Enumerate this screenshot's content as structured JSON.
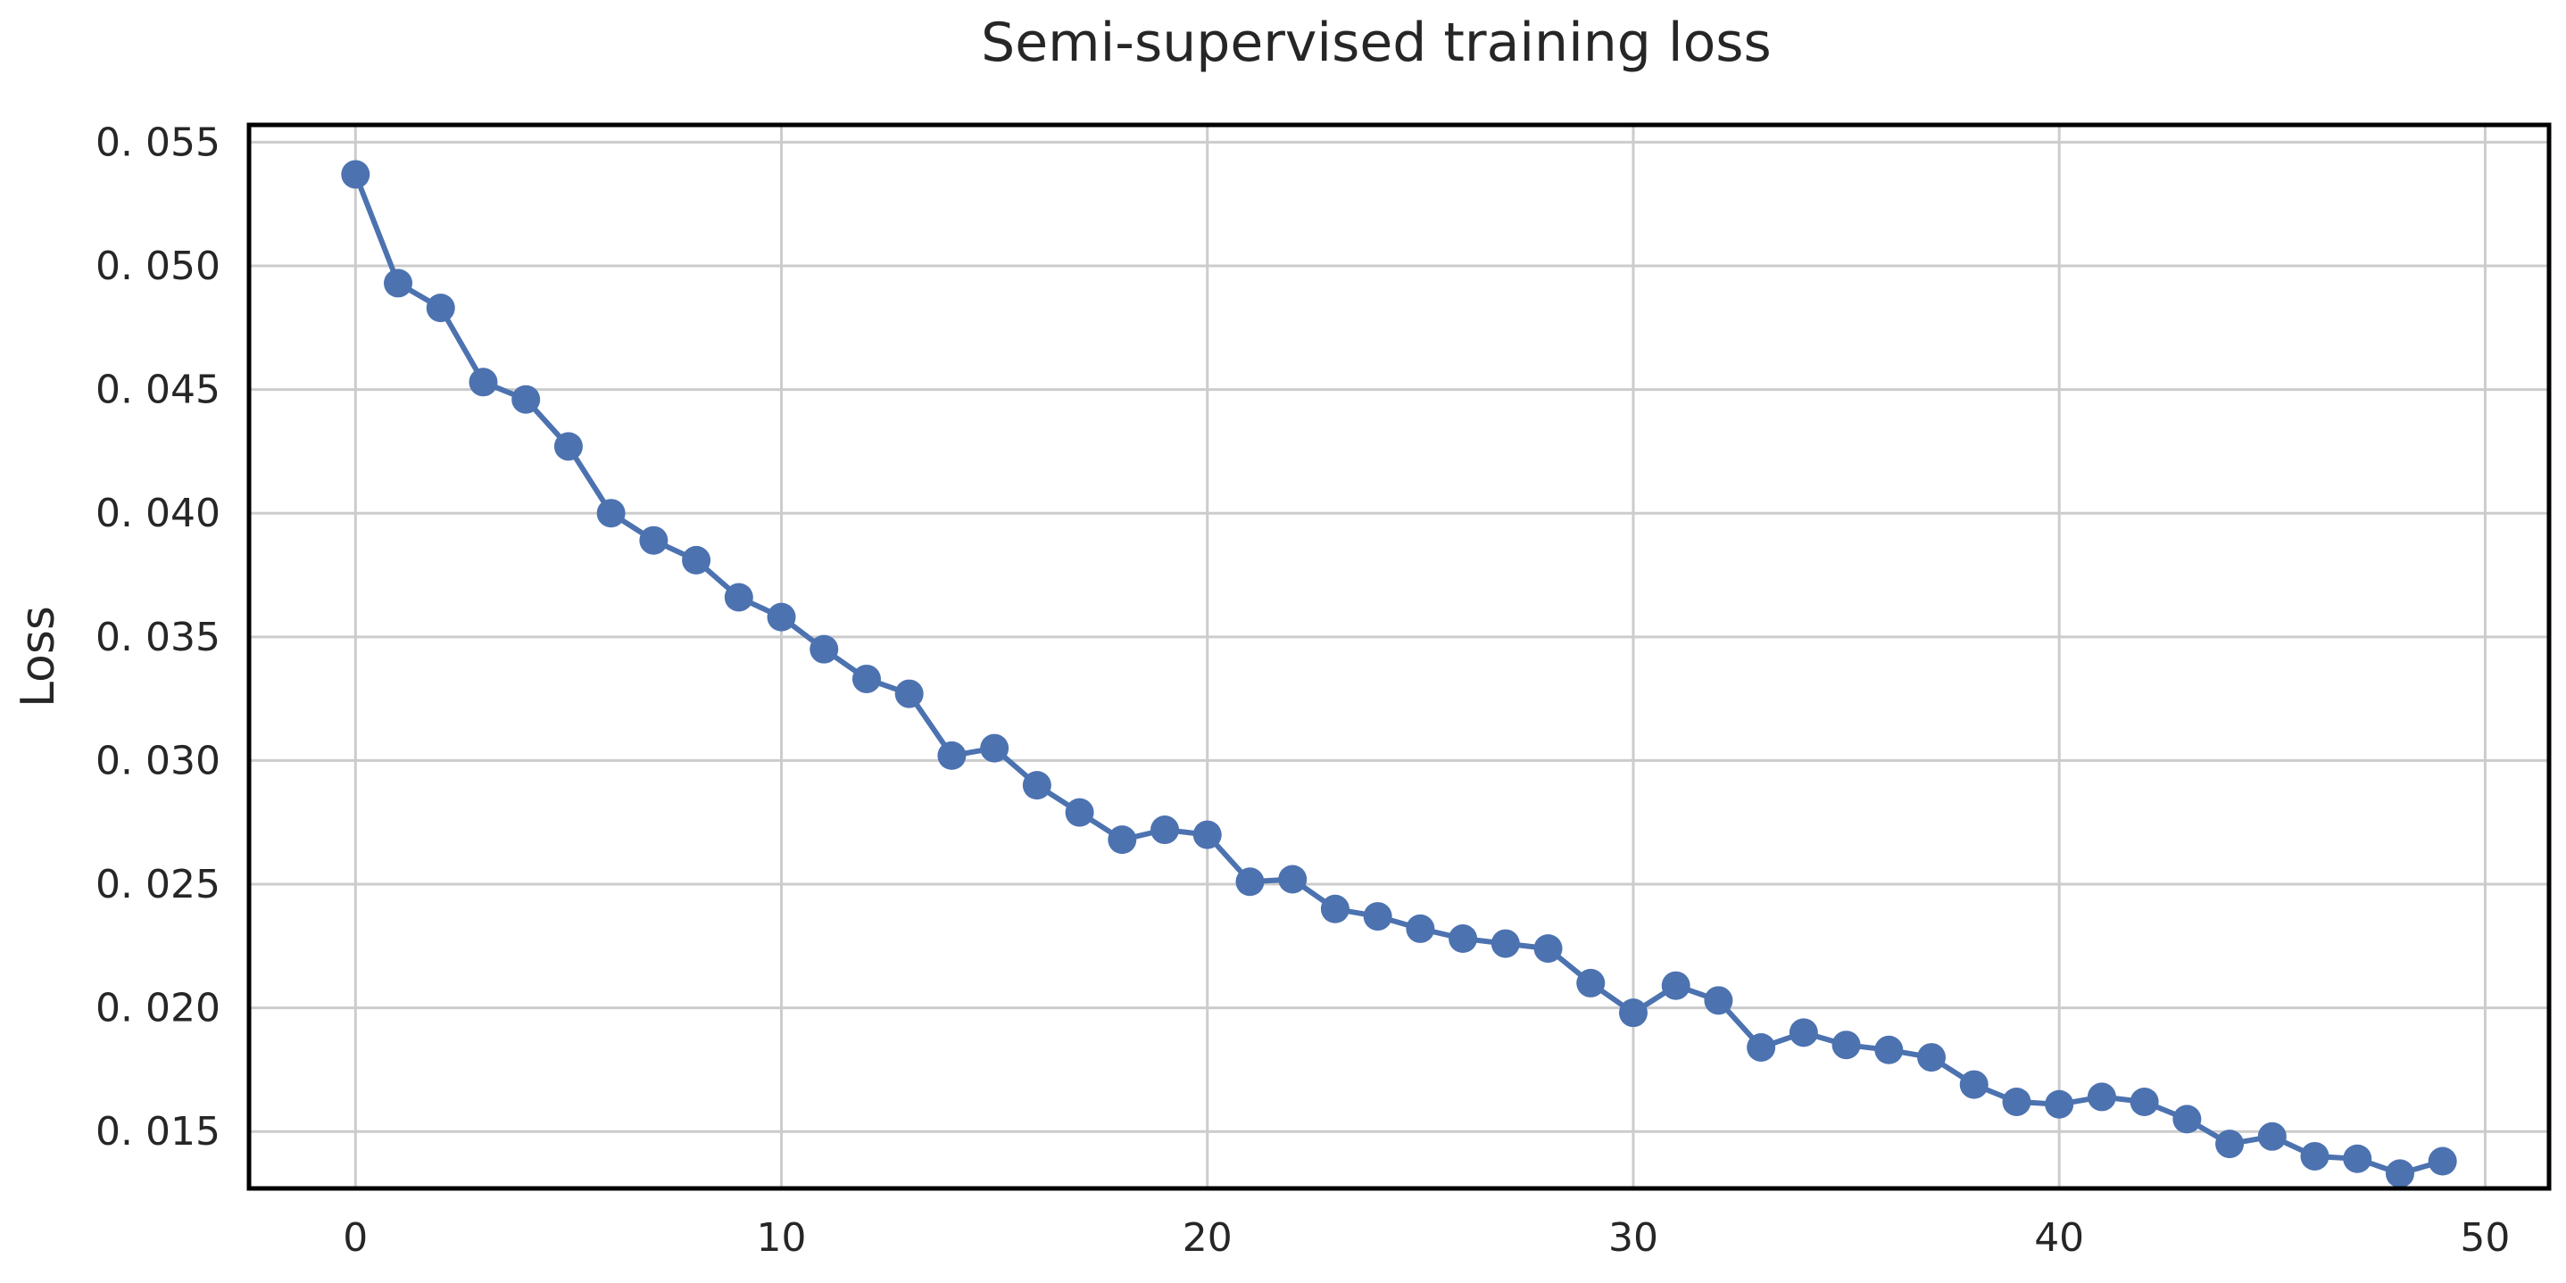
{
  "chart_data": {
    "type": "line",
    "title": "Semi-supervised training loss",
    "xlabel": "",
    "ylabel": "Loss",
    "xlim": [
      -2.5,
      51.5
    ],
    "ylim": [
      0.0127,
      0.0557
    ],
    "xticks": [
      0,
      10,
      20,
      30,
      40,
      50
    ],
    "xtick_labels": [
      "0",
      "10",
      "20",
      "30",
      "40",
      "50"
    ],
    "yticks": [
      0.015,
      0.02,
      0.025,
      0.03,
      0.035,
      0.04,
      0.045,
      0.05,
      0.055
    ],
    "ytick_labels": [
      "0. 015",
      "0. 020",
      "0. 025",
      "0. 030",
      "0. 035",
      "0. 040",
      "0. 045",
      "0. 050",
      "0. 055"
    ],
    "grid": true,
    "color": "#4C72B0",
    "x": [
      0,
      1,
      2,
      3,
      4,
      5,
      6,
      7,
      8,
      9,
      10,
      11,
      12,
      13,
      14,
      15,
      16,
      17,
      18,
      19,
      20,
      21,
      22,
      23,
      24,
      25,
      26,
      27,
      28,
      29,
      30,
      31,
      32,
      33,
      34,
      35,
      36,
      37,
      38,
      39,
      40,
      41,
      42,
      43,
      44,
      45,
      46,
      47,
      48,
      49
    ],
    "values": [
      0.0537,
      0.0493,
      0.0483,
      0.0453,
      0.0446,
      0.0427,
      0.04,
      0.0389,
      0.0381,
      0.0366,
      0.0358,
      0.0345,
      0.0333,
      0.0327,
      0.0302,
      0.0305,
      0.029,
      0.0279,
      0.0268,
      0.0272,
      0.027,
      0.0251,
      0.0252,
      0.024,
      0.0237,
      0.0232,
      0.0228,
      0.0226,
      0.0224,
      0.021,
      0.0198,
      0.0209,
      0.0203,
      0.0184,
      0.019,
      0.0185,
      0.0183,
      0.018,
      0.0169,
      0.0162,
      0.0161,
      0.0164,
      0.0162,
      0.0155,
      0.0145,
      0.0148,
      0.014,
      0.0139,
      0.0133,
      0.0138
    ]
  }
}
